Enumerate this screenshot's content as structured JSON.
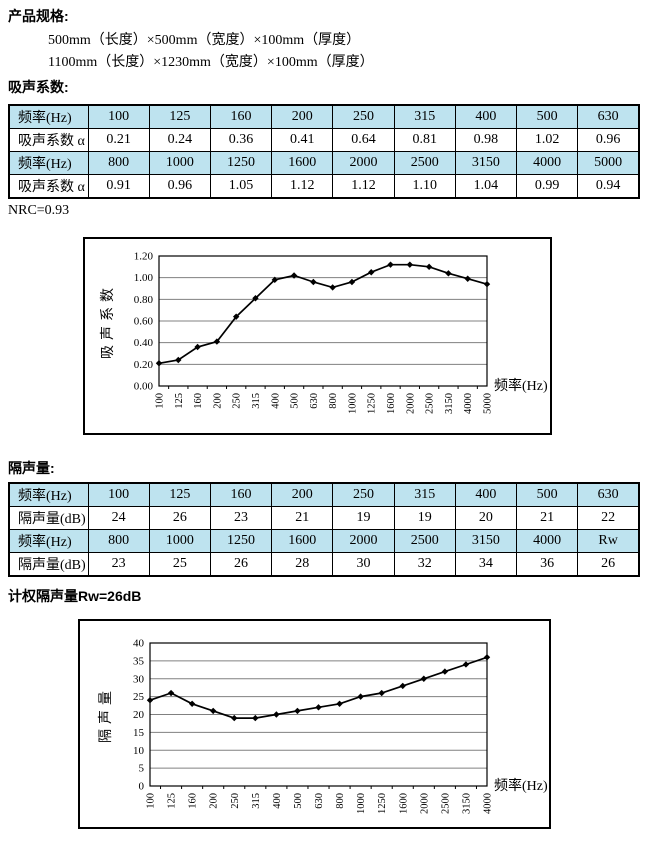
{
  "document": {
    "spec_heading": "产品规格:",
    "spec_lines": [
      "500mm（长度）×500mm（宽度）×100mm（厚度）",
      "1100mm（长度）×1230mm（宽度）×100mm（厚度）"
    ],
    "absorption_heading": "吸声系数:",
    "nrc_note": "NRC=0.93",
    "insulation_heading": "隔声量:",
    "rw_note": "计权隔声量Rw=26dB"
  },
  "colors": {
    "table_header_bg": "#BEE3EF",
    "grid_line": "#808080",
    "series_line": "#000000"
  },
  "absorption_table": {
    "rows": [
      [
        "频率(Hz)",
        "100",
        "125",
        "160",
        "200",
        "250",
        "315",
        "400",
        "500",
        "630"
      ],
      [
        "吸声系数 α",
        "0.21",
        "0.24",
        "0.36",
        "0.41",
        "0.64",
        "0.81",
        "0.98",
        "1.02",
        "0.96"
      ],
      [
        "频率(Hz)",
        "800",
        "1000",
        "1250",
        "1600",
        "2000",
        "2500",
        "3150",
        "4000",
        "5000"
      ],
      [
        "吸声系数 α",
        "0.91",
        "0.96",
        "1.05",
        "1.12",
        "1.12",
        "1.10",
        "1.04",
        "0.99",
        "0.94"
      ]
    ],
    "header_row_indexes": [
      0,
      2
    ]
  },
  "insulation_table": {
    "rows": [
      [
        "频率(Hz)",
        "100",
        "125",
        "160",
        "200",
        "250",
        "315",
        "400",
        "500",
        "630"
      ],
      [
        "隔声量(dB)",
        "24",
        "26",
        "23",
        "21",
        "19",
        "19",
        "20",
        "21",
        "22"
      ],
      [
        "频率(Hz)",
        "800",
        "1000",
        "1250",
        "1600",
        "2000",
        "2500",
        "3150",
        "4000",
        "Rw"
      ],
      [
        "隔声量(dB)",
        "23",
        "25",
        "26",
        "28",
        "30",
        "32",
        "34",
        "36",
        "26"
      ]
    ],
    "header_row_indexes": [
      0,
      2
    ]
  },
  "chart_data": [
    {
      "type": "line",
      "title": "",
      "categories": [
        "100",
        "125",
        "160",
        "200",
        "250",
        "315",
        "400",
        "500",
        "630",
        "800",
        "1000",
        "1250",
        "1600",
        "2000",
        "2500",
        "3150",
        "4000",
        "5000"
      ],
      "values": [
        0.21,
        0.24,
        0.36,
        0.41,
        0.64,
        0.81,
        0.98,
        1.02,
        0.96,
        0.91,
        0.96,
        1.05,
        1.12,
        1.12,
        1.1,
        1.04,
        0.99,
        0.94
      ],
      "xlabel": "频率(Hz)",
      "ylabel": "吸声系数",
      "ylim": [
        0,
        1.2
      ],
      "ytick_labels": [
        "0.00",
        "0.20",
        "0.40",
        "0.60",
        "0.80",
        "1.00",
        "1.20"
      ],
      "grid": true,
      "legend": false,
      "marker": "diamond"
    },
    {
      "type": "line",
      "title": "",
      "categories": [
        "100",
        "125",
        "160",
        "200",
        "250",
        "315",
        "400",
        "500",
        "630",
        "800",
        "1000",
        "1250",
        "1600",
        "2000",
        "2500",
        "3150",
        "4000"
      ],
      "values": [
        24,
        26,
        23,
        21,
        19,
        19,
        20,
        21,
        22,
        23,
        25,
        26,
        28,
        30,
        32,
        34,
        36
      ],
      "xlabel": "频率(Hz)",
      "ylabel": "隔声量",
      "ylim": [
        0,
        40
      ],
      "ytick_labels": [
        "0",
        "5",
        "10",
        "15",
        "20",
        "25",
        "30",
        "35",
        "40"
      ],
      "grid": true,
      "legend": false,
      "marker": "diamond"
    }
  ]
}
